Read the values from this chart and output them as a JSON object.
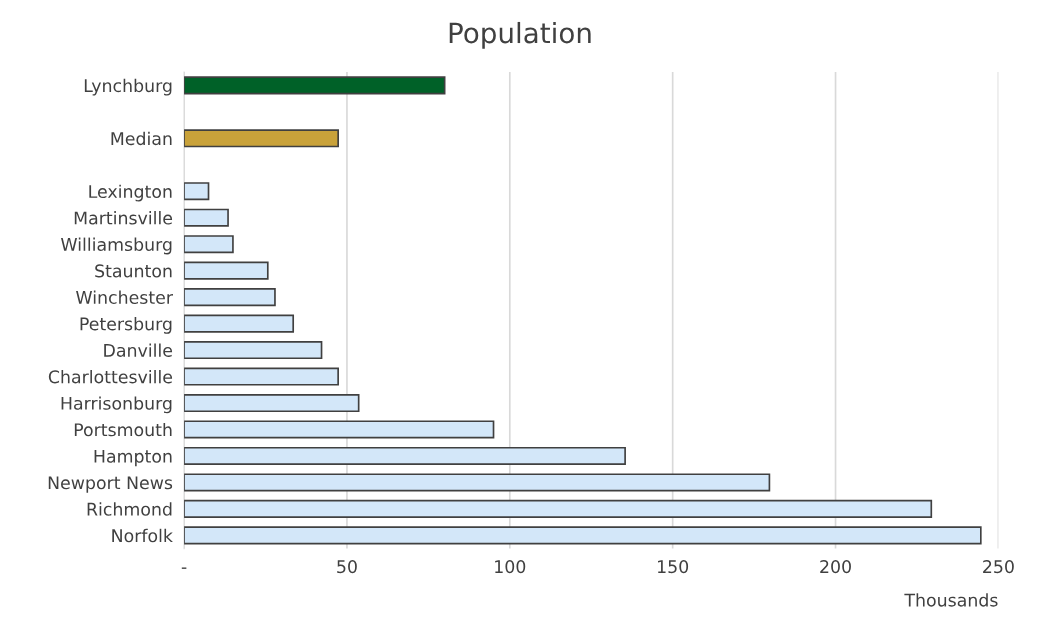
{
  "chart_data": {
    "type": "bar",
    "orientation": "horizontal",
    "title": "Population",
    "xlabel": "Thousands",
    "categories": [
      "Lynchburg",
      null,
      "Median",
      null,
      "Lexington",
      "Martinsville",
      "Williamsburg",
      "Staunton",
      "Winchester",
      "Petersburg",
      "Danville",
      "Charlottesville",
      "Harrisonburg",
      "Portsmouth",
      "Hampton",
      "Newport News",
      "Richmond",
      "Norfolk"
    ],
    "values": [
      80,
      null,
      47.3,
      null,
      7.5,
      13.5,
      15.0,
      25.7,
      27.9,
      33.5,
      42.2,
      47.3,
      53.6,
      95.0,
      135.4,
      179.7,
      229.4,
      244.6
    ],
    "colors": [
      "#006128",
      null,
      "#c9a23a",
      null,
      "#d3e7f9",
      "#d3e7f9",
      "#d3e7f9",
      "#d3e7f9",
      "#d3e7f9",
      "#d3e7f9",
      "#d3e7f9",
      "#d3e7f9",
      "#d3e7f9",
      "#d3e7f9",
      "#d3e7f9",
      "#d3e7f9",
      "#d3e7f9",
      "#d3e7f9"
    ],
    "xlim": [
      0,
      250
    ],
    "xticks": [
      {
        "value": 0,
        "label": "-"
      },
      50,
      100,
      150,
      200,
      250
    ],
    "grid": "x"
  }
}
